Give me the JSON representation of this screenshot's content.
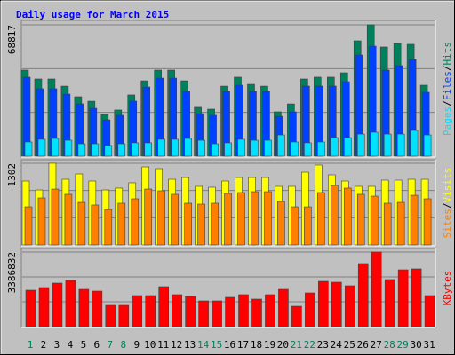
{
  "chart_data": [
    {
      "type": "bar",
      "title": "Daily usage for March 2015",
      "series": [
        {
          "name": "Hits",
          "color": "#00805c",
          "values": [
            45100,
            40450,
            40450,
            36700,
            31150,
            28800,
            21850,
            24200,
            32100,
            39500,
            45100,
            45100,
            39500,
            25600,
            24650,
            36700,
            41400,
            37650,
            36700,
            23250,
            27400,
            40450,
            41400,
            41400,
            43700,
            60450,
            68817,
            57200,
            59050,
            58600,
            37200
          ]
        },
        {
          "name": "Files",
          "color": "#0040ff",
          "values": [
            41400,
            35350,
            35350,
            32550,
            27450,
            25100,
            19050,
            21400,
            28850,
            36250,
            40900,
            40900,
            33950,
            22300,
            21400,
            33950,
            37200,
            33950,
            33950,
            20900,
            23250,
            36750,
            36750,
            36750,
            39050,
            53000,
            57650,
            45100,
            47450,
            50700,
            33500
          ]
        },
        {
          "name": "Pages",
          "color": "#00e0ff",
          "values": [
            7450,
            8850,
            9300,
            8350,
            6500,
            6500,
            5600,
            6500,
            7000,
            7000,
            8850,
            8850,
            9300,
            8350,
            6500,
            7000,
            8850,
            8350,
            8350,
            11150,
            7450,
            7000,
            7450,
            9750,
            9750,
            11600,
            12550,
            11600,
            11600,
            13500,
            11150
          ]
        }
      ],
      "ylim": [
        0,
        68817
      ],
      "yticks": [
        68817
      ]
    },
    {
      "type": "bar",
      "series": [
        {
          "name": "Visits",
          "color": "#ffff00",
          "values": [
            1019,
            877,
            1302,
            1047,
            1132,
            1019,
            877,
            906,
            991,
            1245,
            1217,
            1047,
            1075,
            934,
            920,
            1019,
            1075,
            1075,
            1075,
            934,
            934,
            1160,
            1274,
            1118,
            1019,
            934,
            934,
            1033,
            1033,
            1047,
            1047
          ]
        },
        {
          "name": "Sites",
          "color": "#ff8000",
          "values": [
            608,
            750,
            891,
            807,
            679,
            637,
            566,
            665,
            736,
            891,
            863,
            807,
            665,
            651,
            665,
            821,
            835,
            849,
            849,
            693,
            608,
            608,
            835,
            948,
            906,
            807,
            778,
            665,
            679,
            792,
            736
          ]
        }
      ],
      "ylim": [
        0,
        1302
      ],
      "yticks": [
        1302
      ]
    },
    {
      "type": "bar",
      "series": [
        {
          "name": "KBytes",
          "color": "#ff0000",
          "values": [
            1653000,
            1774000,
            1976000,
            2097000,
            1693000,
            1613000,
            968000,
            968000,
            1411000,
            1411000,
            1814000,
            1452000,
            1371000,
            1169000,
            1169000,
            1331000,
            1452000,
            1250000,
            1452000,
            1693000,
            927000,
            1532000,
            2056000,
            2016000,
            1855000,
            2863000,
            3386832,
            2137000,
            2580000,
            2621000,
            1411000
          ]
        }
      ],
      "ylim": [
        0,
        3386832
      ],
      "yticks": [
        3386832
      ],
      "categories": [
        "1",
        "2",
        "3",
        "4",
        "5",
        "6",
        "7",
        "8",
        "9",
        "10",
        "11",
        "12",
        "13",
        "14",
        "15",
        "16",
        "17",
        "18",
        "19",
        "20",
        "21",
        "22",
        "23",
        "24",
        "25",
        "26",
        "27",
        "28",
        "29",
        "30",
        "31"
      ],
      "label_colors": [
        "#00805c",
        "#000000",
        "#000000",
        "#000000",
        "#000000",
        "#000000",
        "#00805c",
        "#00805c",
        "#000000",
        "#000000",
        "#000000",
        "#000000",
        "#000000",
        "#00805c",
        "#00805c",
        "#000000",
        "#000000",
        "#000000",
        "#000000",
        "#000000",
        "#00805c",
        "#00805c",
        "#000000",
        "#000000",
        "#000000",
        "#000000",
        "#000000",
        "#00805c",
        "#00805c",
        "#000000",
        "#000000"
      ]
    }
  ],
  "separator": "/"
}
